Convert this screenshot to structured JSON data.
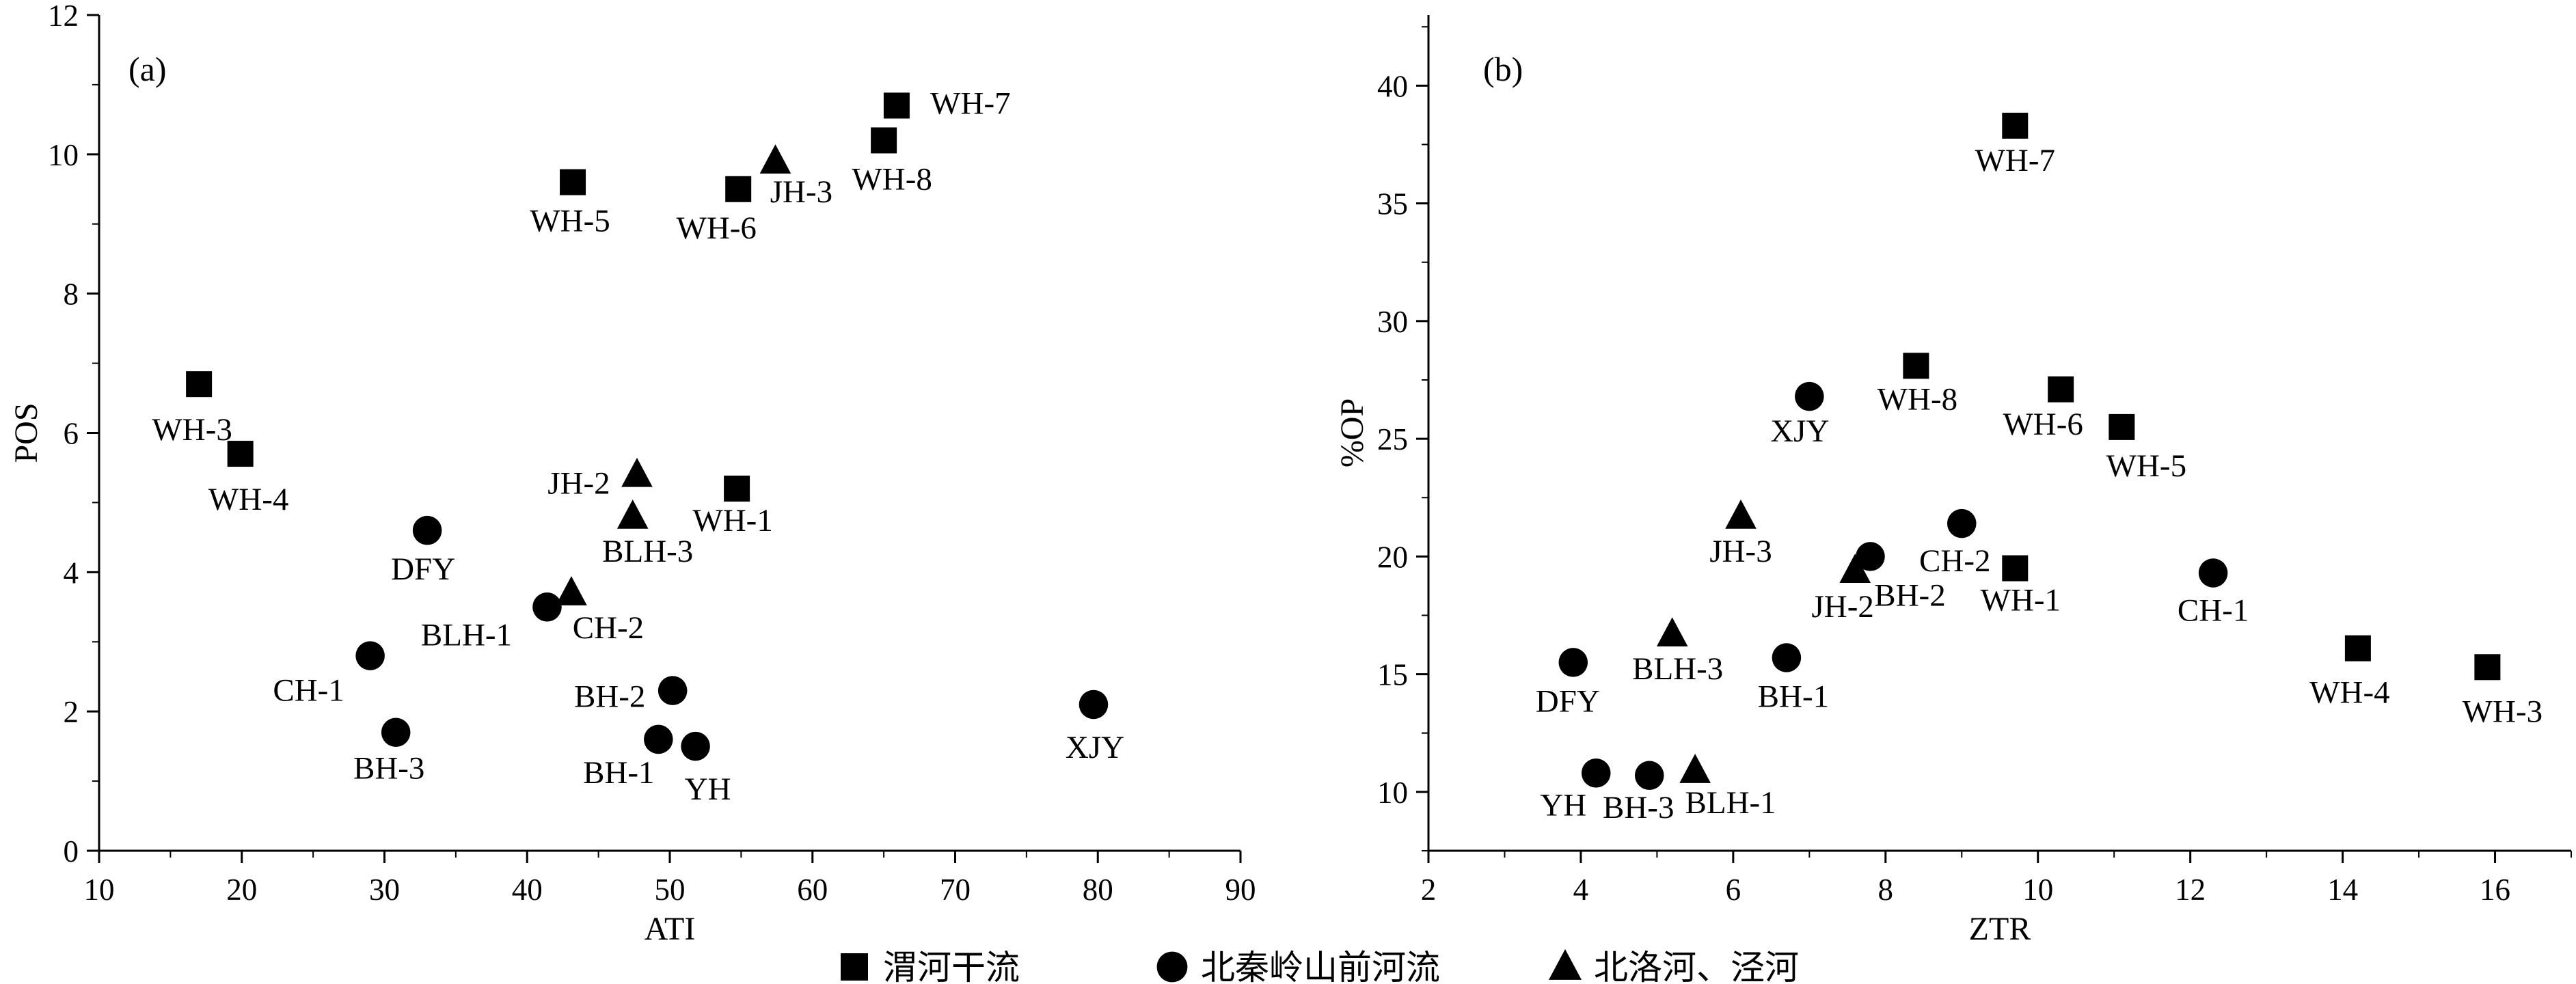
{
  "chart_data": [
    {
      "type": "scatter",
      "panel_label": "(a)",
      "xlabel": "ATI",
      "ylabel": "POS",
      "xlim": [
        10,
        90
      ],
      "ylim": [
        0,
        12
      ],
      "xticks": [
        "10",
        "20",
        "30",
        "40",
        "50",
        "60",
        "70",
        "80",
        "90"
      ],
      "yticks": [
        "0",
        "2",
        "4",
        "6",
        "8",
        "10",
        "12"
      ],
      "series": [
        {
          "name": "渭河干流",
          "marker": "square",
          "points": [
            {
              "label": "WH-1",
              "x": 54.7,
              "y": 5.2
            },
            {
              "label": "WH-3",
              "x": 17.0,
              "y": 6.7
            },
            {
              "label": "WH-4",
              "x": 19.9,
              "y": 5.7
            },
            {
              "label": "WH-5",
              "x": 43.2,
              "y": 9.6
            },
            {
              "label": "WH-6",
              "x": 54.8,
              "y": 9.5
            },
            {
              "label": "WH-7",
              "x": 65.9,
              "y": 10.7
            },
            {
              "label": "WH-8",
              "x": 65.0,
              "y": 10.2
            }
          ]
        },
        {
          "name": "北秦岭山前河流",
          "marker": "circle",
          "points": [
            {
              "label": "BH-1",
              "x": 49.2,
              "y": 1.6
            },
            {
              "label": "BH-2",
              "x": 50.2,
              "y": 2.3
            },
            {
              "label": "BH-3",
              "x": 30.8,
              "y": 1.7
            },
            {
              "label": "BLH-1",
              "x": 41.4,
              "y": 3.5
            },
            {
              "label": "CH-1",
              "x": 29.0,
              "y": 2.8
            },
            {
              "label": "DFY",
              "x": 33.0,
              "y": 4.6
            },
            {
              "label": "XJY",
              "x": 79.7,
              "y": 2.1
            },
            {
              "label": "YH",
              "x": 51.8,
              "y": 1.5
            }
          ]
        },
        {
          "name": "北洛河、泾河",
          "marker": "triangle",
          "points": [
            {
              "label": "BLH-3",
              "x": 47.4,
              "y": 4.8
            },
            {
              "label": "CH-2",
              "x": 43.1,
              "y": 3.7
            },
            {
              "label": "JH-2",
              "x": 47.7,
              "y": 5.4
            },
            {
              "label": "JH-3",
              "x": 57.4,
              "y": 9.9
            }
          ]
        }
      ]
    },
    {
      "type": "scatter",
      "panel_label": "(b)",
      "xlabel": "ZTR",
      "ylabel": "%OP",
      "xlim": [
        2,
        17
      ],
      "ylim": [
        7.5,
        43
      ],
      "xticks": [
        "2",
        "4",
        "6",
        "8",
        "10",
        "12",
        "14",
        "16"
      ],
      "yticks": [
        "10",
        "15",
        "20",
        "25",
        "30",
        "35",
        "40"
      ],
      "series": [
        {
          "name": "渭河干流",
          "marker": "square",
          "points": [
            {
              "label": "WH-1",
              "x": 9.7,
              "y": 19.5
            },
            {
              "label": "WH-3",
              "x": 15.9,
              "y": 15.3
            },
            {
              "label": "WH-4",
              "x": 14.2,
              "y": 16.1
            },
            {
              "label": "WH-5",
              "x": 11.1,
              "y": 25.5
            },
            {
              "label": "WH-6",
              "x": 10.3,
              "y": 27.1
            },
            {
              "label": "WH-7",
              "x": 9.7,
              "y": 38.3
            },
            {
              "label": "WH-8",
              "x": 8.4,
              "y": 28.1
            }
          ]
        },
        {
          "name": "北秦岭山前河流",
          "marker": "circle",
          "points": [
            {
              "label": "BH-1",
              "x": 6.7,
              "y": 15.7
            },
            {
              "label": "BH-2",
              "x": 7.8,
              "y": 20.0
            },
            {
              "label": "BH-3",
              "x": 4.9,
              "y": 10.7
            },
            {
              "label": "CH-1",
              "x": 12.3,
              "y": 19.3
            },
            {
              "label": "CH-2",
              "x": 9.0,
              "y": 21.4
            },
            {
              "label": "DFY",
              "x": 3.9,
              "y": 15.5
            },
            {
              "label": "XJY",
              "x": 7.0,
              "y": 26.8
            },
            {
              "label": "YH",
              "x": 4.2,
              "y": 10.8
            }
          ]
        },
        {
          "name": "北洛河、泾河",
          "marker": "triangle",
          "points": [
            {
              "label": "BLH-1",
              "x": 5.5,
              "y": 10.9
            },
            {
              "label": "BLH-3",
              "x": 5.2,
              "y": 16.7
            },
            {
              "label": "JH-2",
              "x": 7.6,
              "y": 19.4
            },
            {
              "label": "JH-3",
              "x": 6.1,
              "y": 21.7
            }
          ]
        }
      ]
    }
  ],
  "legend": [
    {
      "marker": "square",
      "label": "渭河干流"
    },
    {
      "marker": "circle",
      "label": "北秦岭山前河流"
    },
    {
      "marker": "triangle",
      "label": "北洛河、泾河"
    }
  ]
}
